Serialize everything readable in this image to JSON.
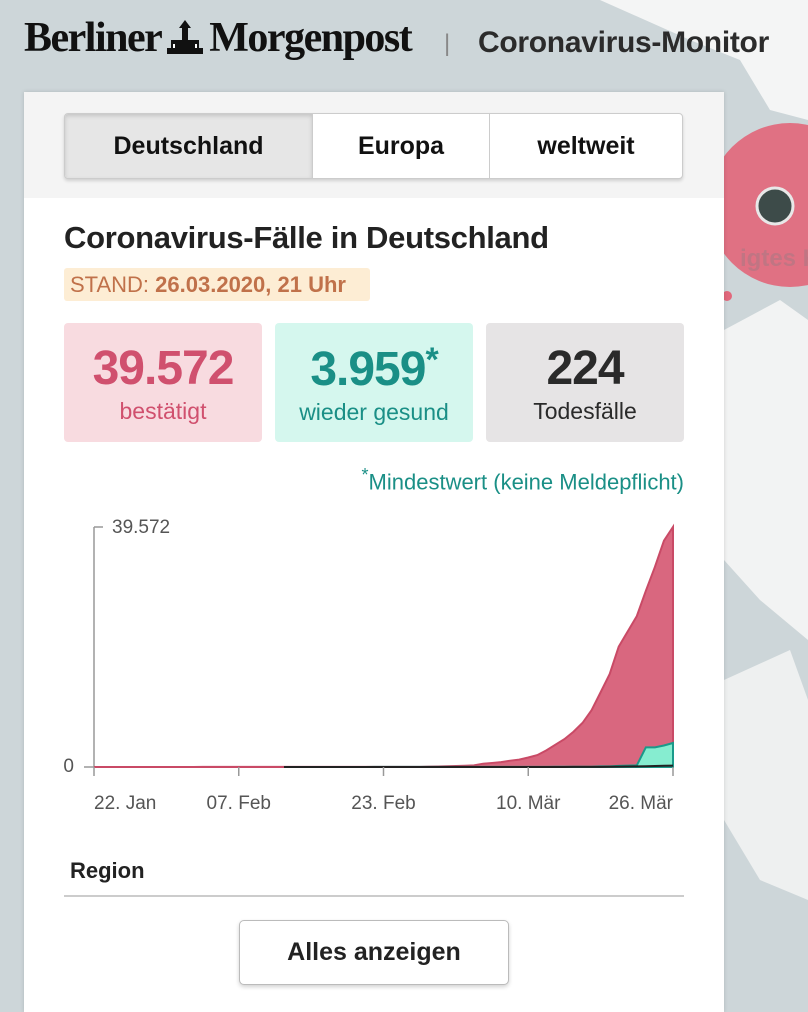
{
  "header": {
    "logo": [
      "Berliner",
      "Morgenpost"
    ],
    "separator": "|",
    "title": "Coronavirus-Monitor"
  },
  "tabs": [
    "Deutschland",
    "Europa",
    "weltweit"
  ],
  "heading": "Coronavirus-Fälle in Deutschland",
  "stand": {
    "label": "STAND:",
    "value": "26.03.2020, 21 Uhr"
  },
  "stats": [
    {
      "value": "39.572",
      "label": "bestätigt"
    },
    {
      "value": "3.959",
      "note": "*",
      "label": "wieder gesund"
    },
    {
      "value": "224",
      "label": "Todesfälle"
    }
  ],
  "footnote": {
    "mark": "*",
    "text": "Mindestwert (keine Meldepflicht)"
  },
  "chart_data": {
    "type": "area",
    "categories": [
      "22. Jan",
      null,
      null,
      null,
      null,
      null,
      null,
      null,
      null,
      null,
      null,
      null,
      null,
      null,
      null,
      null,
      "07. Feb",
      null,
      null,
      null,
      null,
      null,
      null,
      null,
      null,
      null,
      null,
      null,
      null,
      null,
      null,
      null,
      "23. Feb",
      null,
      null,
      null,
      null,
      null,
      null,
      null,
      null,
      null,
      null,
      null,
      null,
      null,
      null,
      null,
      "10. Mär",
      null,
      null,
      null,
      null,
      null,
      null,
      null,
      null,
      null,
      null,
      null,
      null,
      null,
      null,
      null,
      "26. Mär"
    ],
    "series": [
      {
        "name": "bestätigt",
        "color": "#d9677f",
        "stroke": "#c94a66",
        "values": [
          0,
          0,
          0,
          0,
          0,
          1,
          4,
          4,
          4,
          5,
          8,
          10,
          12,
          12,
          12,
          12,
          13,
          13,
          14,
          14,
          16,
          16,
          16,
          16,
          16,
          16,
          16,
          16,
          16,
          16,
          16,
          16,
          16,
          16,
          18,
          21,
          26,
          57,
          79,
          130,
          165,
          203,
          262,
          545,
          670,
          800,
          1040,
          1224,
          1565,
          1966,
          2745,
          3675,
          4599,
          5813,
          7272,
          9367,
          12327,
          15320,
          19848,
          22364,
          24873,
          29056,
          32986,
          37323,
          39572
        ]
      },
      {
        "name": "wieder gesund",
        "color": "#86edd0",
        "stroke": "#1a9a8a",
        "values": [
          null,
          null,
          null,
          null,
          null,
          null,
          null,
          null,
          null,
          null,
          null,
          null,
          null,
          null,
          null,
          null,
          null,
          null,
          null,
          null,
          null,
          0,
          0,
          0,
          0,
          0,
          0,
          0,
          0,
          0,
          0,
          14,
          14,
          14,
          14,
          16,
          16,
          16,
          16,
          16,
          16,
          16,
          16,
          16,
          17,
          18,
          18,
          18,
          25,
          25,
          25,
          46,
          46,
          46,
          46,
          46,
          105,
          113,
          180,
          233,
          266,
          3243,
          3243,
          3547,
          3959
        ]
      },
      {
        "name": "Todesfälle",
        "color": "#222222",
        "values": [
          null,
          null,
          null,
          null,
          null,
          null,
          null,
          null,
          null,
          null,
          null,
          null,
          null,
          null,
          null,
          null,
          null,
          null,
          null,
          null,
          null,
          0,
          0,
          0,
          0,
          0,
          0,
          0,
          0,
          0,
          0,
          0,
          0,
          0,
          0,
          0,
          0,
          0,
          0,
          0,
          0,
          0,
          0,
          0,
          0,
          0,
          0,
          2,
          2,
          3,
          6,
          8,
          9,
          13,
          17,
          24,
          28,
          44,
          67,
          84,
          94,
          123,
          157,
          206,
          224
        ]
      }
    ],
    "ylim": [
      0,
      39572
    ],
    "yticks": [
      0,
      {
        "value": 39572,
        "label": "39.572"
      }
    ]
  },
  "region": "Region",
  "button": "Alles anzeigen",
  "map_label": "igtes K"
}
